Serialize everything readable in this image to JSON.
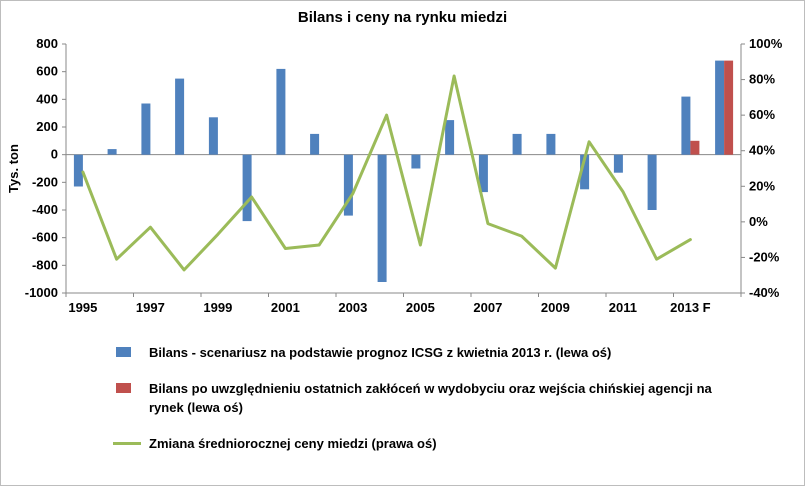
{
  "title": "Bilans i ceny na rynku miedzi",
  "colors": {
    "bar_blue": "#4f81bd",
    "bar_red": "#c0504d",
    "line_green": "#9bbb59",
    "axis": "#888888",
    "frame_border": "#bdbdbd"
  },
  "chart_data": {
    "type": "bar+line",
    "title": "Bilans i ceny na rynku miedzi",
    "axis_color": "#888888",
    "x_categories": [
      "1995",
      "1996",
      "1997",
      "1998",
      "1999",
      "2000",
      "2001",
      "2002",
      "2003",
      "2004",
      "2005",
      "2006",
      "2007",
      "2008",
      "2009",
      "2010",
      "2011",
      "2012",
      "2013 F",
      "2014 F"
    ],
    "x_axis_ticks": [
      {
        "i": 0,
        "label": "1995"
      },
      {
        "i": 2,
        "label": "1997"
      },
      {
        "i": 4,
        "label": "1999"
      },
      {
        "i": 6,
        "label": "2001"
      },
      {
        "i": 8,
        "label": "2003"
      },
      {
        "i": 10,
        "label": "2005"
      },
      {
        "i": 12,
        "label": "2007"
      },
      {
        "i": 14,
        "label": "2009"
      },
      {
        "i": 16,
        "label": "2011"
      },
      {
        "i": 18,
        "label": "2013 F"
      }
    ],
    "left_axis": {
      "title": "Tys. ton",
      "min": -1000,
      "max": 800,
      "step": 200,
      "tick_labels": [
        "800",
        "600",
        "400",
        "200",
        "0",
        "-200",
        "-400",
        "-600",
        "-800",
        "-1000"
      ]
    },
    "right_axis": {
      "min": -40,
      "max": 100,
      "step": 20,
      "tick_labels": [
        "100%",
        "80%",
        "60%",
        "40%",
        "20%",
        "0%",
        "-20%",
        "-40%"
      ]
    },
    "grid": "zero-line-only",
    "legend_position": "bottom-left",
    "series": [
      {
        "key": "bilans-icsg",
        "name": "Bilans - scenariusz na podstawie prognoz ICSG z kwietnia 2013 r. (lewa oś)",
        "type": "bar",
        "axis": "left",
        "color": "#4f81bd",
        "values": [
          -230,
          40,
          370,
          550,
          270,
          -480,
          620,
          150,
          -440,
          -920,
          -100,
          250,
          -270,
          150,
          150,
          -250,
          -130,
          -400,
          420,
          680
        ]
      },
      {
        "key": "bilans-zaklocenia",
        "name": "Bilans po uwzględnieniu ostatnich zakłóceń w wydobyciu oraz wejścia chińskiej agencji na rynek (lewa oś)",
        "type": "bar",
        "axis": "left",
        "color": "#c0504d",
        "values": [
          null,
          null,
          null,
          null,
          null,
          null,
          null,
          null,
          null,
          null,
          null,
          null,
          null,
          null,
          null,
          null,
          null,
          null,
          100,
          680
        ]
      },
      {
        "key": "zmiana-ceny-miedzi",
        "name": "Zmiana średniorocznej ceny miedzi (prawa oś)",
        "type": "line",
        "axis": "right",
        "color": "#9bbb59",
        "values": [
          28,
          -21,
          -3,
          -27,
          -7,
          14,
          -15,
          -13,
          16,
          60,
          -13,
          82,
          -1,
          -8,
          -26,
          45,
          17,
          -21,
          -10,
          null
        ]
      }
    ]
  },
  "legend": [
    {
      "swatch": "bar",
      "color": "#4f81bd",
      "label": "Bilans - scenariusz na podstawie prognoz ICSG z kwietnia 2013 r. (lewa oś)"
    },
    {
      "swatch": "bar",
      "color": "#c0504d",
      "label": "Bilans po uwzględnieniu ostatnich zakłóceń w wydobyciu oraz wejścia chińskiej agencji na rynek (lewa oś)"
    },
    {
      "swatch": "line",
      "color": "#9bbb59",
      "label": "Zmiana średniorocznej ceny miedzi (prawa oś)"
    }
  ]
}
